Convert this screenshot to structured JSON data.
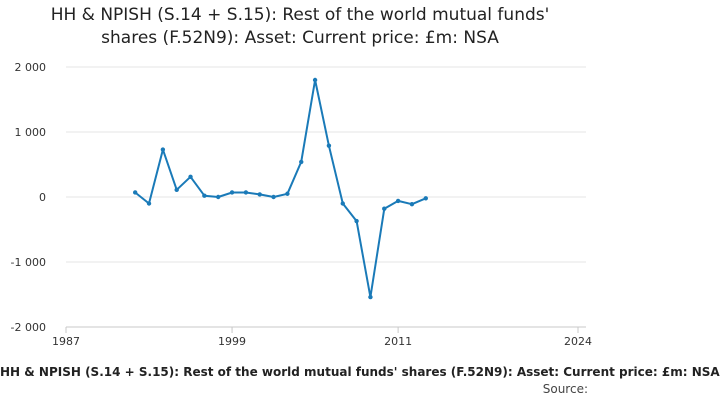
{
  "chart_data": {
    "type": "line",
    "title_lines": [
      "HH & NPISH (S.14 + S.15): Rest of the world mutual funds'",
      "shares (F.52N9): Asset: Current price: £m: NSA"
    ],
    "xlabel": "HH & NPISH (S.14 + S.15): Rest of the world mutual funds' shares (F.52N9): Asset: Current price: £m: NSA",
    "ylabel": "",
    "source_label": "Source:",
    "xlim": [
      1987,
      2024
    ],
    "ylim": [
      -2000,
      2000
    ],
    "x_ticks": [
      1987,
      1999,
      2011,
      2024
    ],
    "x_tick_labels": [
      "1987",
      "1999",
      "2011",
      "2024"
    ],
    "y_ticks": [
      -2000,
      -1000,
      0,
      1000,
      2000
    ],
    "y_tick_labels": [
      "-2 000",
      "-1 000",
      "0",
      "1 000",
      "2 000"
    ],
    "grid": true,
    "series_color": "#1a7ab8",
    "x": [
      1992,
      1993,
      1994,
      1995,
      1996,
      1997,
      1998,
      1999,
      2000,
      2001,
      2002,
      2003,
      2004,
      2005,
      2006,
      2007,
      2008,
      2009,
      2010,
      2011,
      2012,
      2013
    ],
    "values": [
      70,
      -100,
      730,
      110,
      310,
      20,
      0,
      70,
      70,
      40,
      0,
      50,
      540,
      1800,
      790,
      -100,
      -370,
      -1540,
      -180,
      -60,
      -110,
      -20
    ]
  }
}
